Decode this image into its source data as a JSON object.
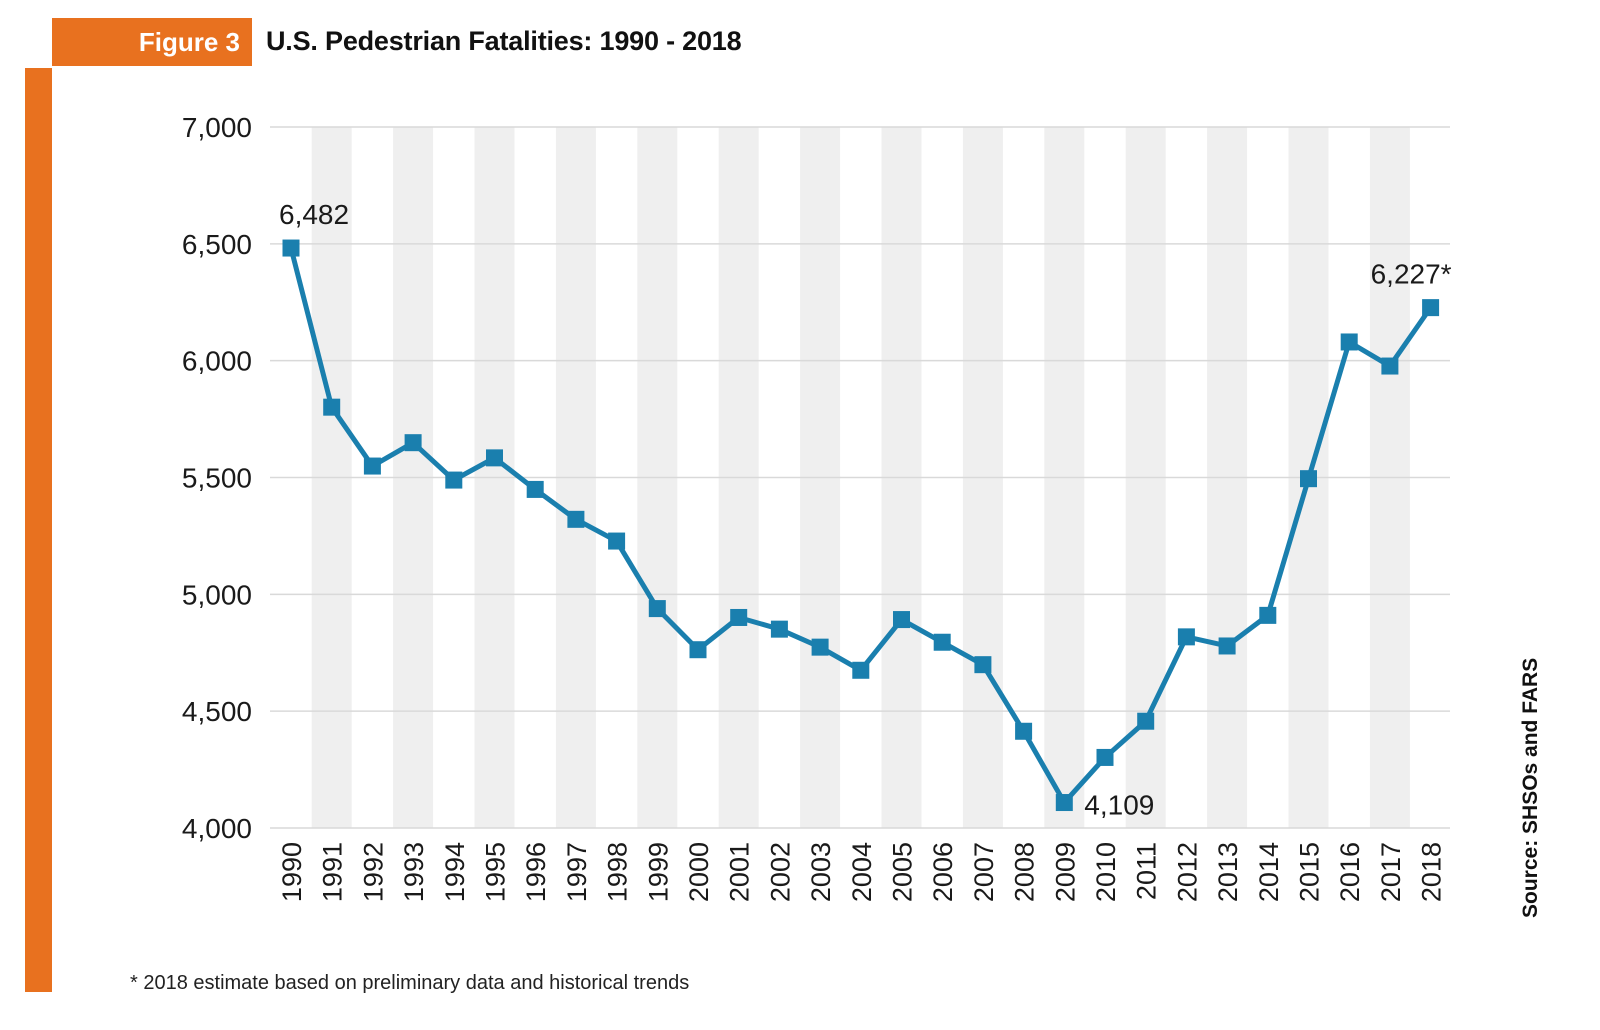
{
  "figure_label": "Figure 3",
  "title": "U.S. Pedestrian Fatalities: 1990 - 2018",
  "footnote": "* 2018 estimate based on preliminary data and historical trends",
  "source": "Source: SHSOs and FARS",
  "colors": {
    "accent": "#e8711f",
    "line": "#1a7fae",
    "stripe": "#efefef",
    "grid": "#d9d9d9"
  },
  "chart_data": {
    "type": "line",
    "title": "U.S. Pedestrian Fatalities: 1990 - 2018",
    "x": [
      "1990",
      "1991",
      "1992",
      "1993",
      "1994",
      "1995",
      "1996",
      "1997",
      "1998",
      "1999",
      "2000",
      "2001",
      "2002",
      "2003",
      "2004",
      "2005",
      "2006",
      "2007",
      "2008",
      "2009",
      "2010",
      "2011",
      "2012",
      "2013",
      "2014",
      "2015",
      "2016",
      "2017",
      "2018"
    ],
    "series": [
      {
        "values": [
          6482,
          5801,
          5549,
          5649,
          5489,
          5584,
          5449,
          5321,
          5228,
          4939,
          4763,
          4901,
          4851,
          4774,
          4675,
          4892,
          4795,
          4699,
          4414,
          4109,
          4302,
          4457,
          4818,
          4779,
          4910,
          5495,
          6080,
          5977,
          6227
        ]
      }
    ],
    "ylim": [
      4000,
      7000
    ],
    "yticks": [
      4000,
      4500,
      5000,
      5500,
      6000,
      6500,
      7000
    ],
    "ytick_labels": [
      "4,000",
      "4,500",
      "5,000",
      "5,500",
      "6,000",
      "6,500",
      "7,000"
    ],
    "grid": true,
    "annotations": [
      {
        "x": "1990",
        "text": "6,482"
      },
      {
        "x": "2009",
        "text": "4,109"
      },
      {
        "x": "2018",
        "text": "6,227*"
      }
    ]
  }
}
